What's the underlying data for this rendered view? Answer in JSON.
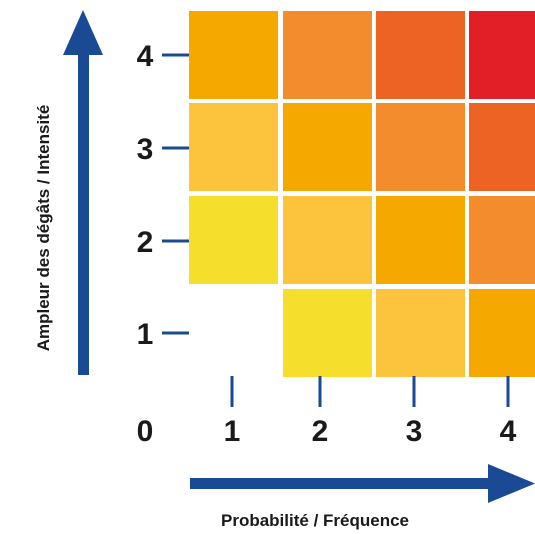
{
  "chart_data": {
    "type": "heatmap",
    "xlabel": "Probabilité / Fréquence",
    "ylabel": "Ampleur des dégâts / Intensité",
    "origin_label": "0",
    "x_ticks": [
      "1",
      "2",
      "3",
      "4"
    ],
    "y_ticks": [
      "1",
      "2",
      "3",
      "4"
    ],
    "levels": [
      [
        null,
        1,
        2,
        3
      ],
      [
        1,
        2,
        3,
        4
      ],
      [
        2,
        3,
        4,
        5
      ],
      [
        3,
        4,
        5,
        6
      ]
    ],
    "level_colors": [
      "#f5df2c",
      "#f5df2c",
      "#fcc43c",
      "#f5a800",
      "#f28c2c",
      "#ec6324",
      "#e21e26"
    ],
    "axis_color": "#1b4a94"
  }
}
